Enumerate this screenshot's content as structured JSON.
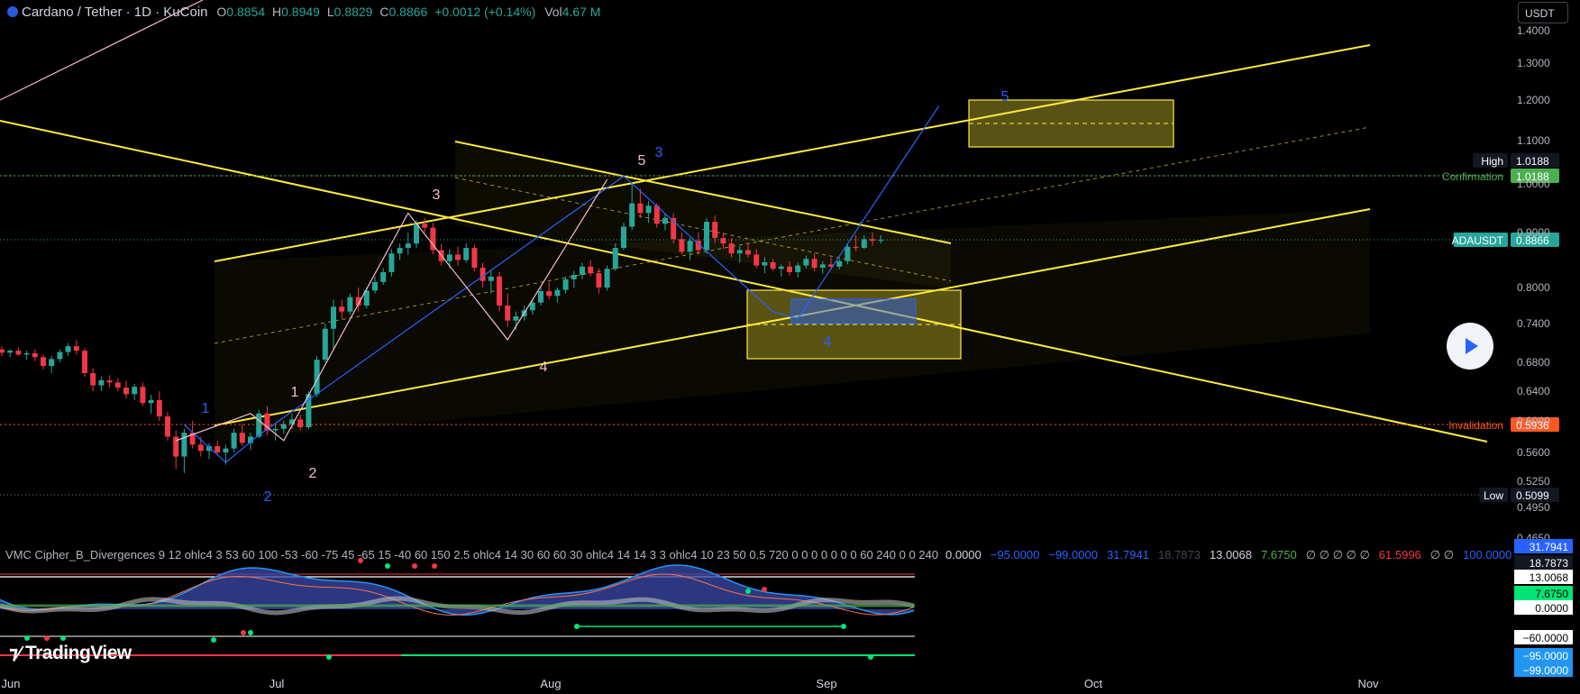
{
  "header": {
    "symbol": "Cardano / Tether · 1D · KuCoin",
    "o_label": "O",
    "o": "0.8854",
    "h_label": "H",
    "h": "0.8949",
    "l_label": "L",
    "l": "0.8829",
    "c_label": "C",
    "c": "0.8866",
    "change": "+0.0012 (+0.14%)",
    "vol_label": "Vol",
    "vol": "4.67 M"
  },
  "currency_button": "USDT",
  "brand": "TradingView",
  "indicator": {
    "title": "VMC Cipher_B_Divergences 9 12 ohlc4 3 53 60 100 -53 -60 -75 45 -65 15 -40 60 150 2.5 ohlc4 14 30 60 60 30 ohlc4 14 14 3 3 ohlc4 10 23 50 0.5 720 0 0 0 0 0 0 0 60 240 0 0 240",
    "values": [
      "0.0000",
      "−95.0000",
      "−99.0000",
      "31.7941",
      "18.7873",
      "13.0068",
      "7.6750",
      "∅ ∅ ∅ ∅ ∅",
      "61.5996",
      "∅ ∅",
      "100.0000"
    ],
    "value_colors": [
      "#d1d4dc",
      "#2962ff",
      "#2962ff",
      "#2962ff",
      "#434651",
      "#d1d4dc",
      "#4caf50",
      "#b2b5be",
      "#f23645",
      "#b2b5be",
      "#2962ff"
    ],
    "axis_labels": [
      {
        "text": "31.7941",
        "bg": "#2962ff",
        "fg": "#ffffff"
      },
      {
        "text": "18.7873",
        "bg": "#131722",
        "fg": "#ffffff"
      },
      {
        "text": "13.0068",
        "bg": "#ffffff",
        "fg": "#000000"
      },
      {
        "text": "7.6750",
        "bg": "#00e676",
        "fg": "#000000"
      },
      {
        "text": "0.0000",
        "bg": "#ffffff",
        "fg": "#000000"
      },
      {
        "text": "−60.0000",
        "bg": "#ffffff",
        "fg": "#000000"
      },
      {
        "text": "−95.0000",
        "bg": "#2196f3",
        "fg": "#ffffff"
      },
      {
        "text": "−99.0000",
        "bg": "#2196f3",
        "fg": "#ffffff"
      }
    ]
  },
  "chart_data": {
    "type": "candlestick",
    "symbol": "ADAUSDT",
    "timeframe": "1D",
    "y_axis_ticks": [
      "1.4000",
      "1.3000",
      "1.2000",
      "1.1000",
      "1.0000",
      "0.9000",
      "0.8000",
      "0.7400",
      "0.6800",
      "0.6400",
      "0.6000",
      "0.5600",
      "0.5250",
      "0.4950",
      "0.4650"
    ],
    "x_axis_ticks": [
      "Jun",
      "Jul",
      "Aug",
      "Sep",
      "Oct",
      "Nov"
    ],
    "price_labels": [
      {
        "name": "High",
        "value": "1.0188"
      },
      {
        "name": "Confirmation",
        "value": "1.0188"
      },
      {
        "name": "ADAUSDT",
        "value": "0.8866"
      },
      {
        "name": "Invalidation",
        "value": "0.5936"
      },
      {
        "name": "Low",
        "value": "0.5099"
      }
    ],
    "wave_labels_pink": [
      "1",
      "2",
      "3",
      "4",
      "5"
    ],
    "wave_labels_blue": [
      "1",
      "2",
      "3",
      "4",
      "5"
    ],
    "colors": {
      "up": "#26a69a",
      "down": "#f23645",
      "channel": "#ffeb3b",
      "wave_blue": "#2962ff",
      "wave_pink": "#f8bbd0",
      "invalidation": "#ff5722",
      "confirmation": "#4caf50"
    },
    "candles": [
      [
        0.7,
        0.705,
        0.69,
        0.695
      ],
      [
        0.695,
        0.7,
        0.688,
        0.698
      ],
      [
        0.698,
        0.703,
        0.69,
        0.692
      ],
      [
        0.692,
        0.698,
        0.684,
        0.694
      ],
      [
        0.694,
        0.7,
        0.682,
        0.688
      ],
      [
        0.688,
        0.692,
        0.67,
        0.675
      ],
      [
        0.675,
        0.69,
        0.665,
        0.685
      ],
      [
        0.685,
        0.7,
        0.68,
        0.696
      ],
      [
        0.696,
        0.71,
        0.69,
        0.705
      ],
      [
        0.705,
        0.715,
        0.692,
        0.698
      ],
      [
        0.698,
        0.702,
        0.66,
        0.665
      ],
      [
        0.665,
        0.672,
        0.64,
        0.648
      ],
      [
        0.648,
        0.66,
        0.64,
        0.655
      ],
      [
        0.655,
        0.662,
        0.645,
        0.652
      ],
      [
        0.652,
        0.658,
        0.64,
        0.645
      ],
      [
        0.645,
        0.655,
        0.63,
        0.636
      ],
      [
        0.636,
        0.65,
        0.628,
        0.646
      ],
      [
        0.646,
        0.652,
        0.62,
        0.624
      ],
      [
        0.624,
        0.635,
        0.61,
        0.628
      ],
      [
        0.628,
        0.64,
        0.6,
        0.606
      ],
      [
        0.606,
        0.612,
        0.575,
        0.58
      ],
      [
        0.58,
        0.588,
        0.54,
        0.555
      ],
      [
        0.555,
        0.59,
        0.535,
        0.585
      ],
      [
        0.585,
        0.6,
        0.565,
        0.57
      ],
      [
        0.57,
        0.58,
        0.555,
        0.562
      ],
      [
        0.562,
        0.572,
        0.552,
        0.568
      ],
      [
        0.568,
        0.575,
        0.558,
        0.56
      ],
      [
        0.56,
        0.57,
        0.545,
        0.565
      ],
      [
        0.565,
        0.59,
        0.56,
        0.585
      ],
      [
        0.585,
        0.596,
        0.568,
        0.572
      ],
      [
        0.572,
        0.585,
        0.563,
        0.58
      ],
      [
        0.58,
        0.615,
        0.578,
        0.61
      ],
      [
        0.61,
        0.62,
        0.582,
        0.588
      ],
      [
        0.588,
        0.595,
        0.575,
        0.59
      ],
      [
        0.59,
        0.6,
        0.584,
        0.596
      ],
      [
        0.596,
        0.61,
        0.59,
        0.602
      ],
      [
        0.602,
        0.608,
        0.588,
        0.592
      ],
      [
        0.592,
        0.64,
        0.59,
        0.636
      ],
      [
        0.636,
        0.69,
        0.632,
        0.684
      ],
      [
        0.684,
        0.74,
        0.68,
        0.732
      ],
      [
        0.732,
        0.78,
        0.7,
        0.768
      ],
      [
        0.768,
        0.78,
        0.748,
        0.76
      ],
      [
        0.76,
        0.79,
        0.755,
        0.784
      ],
      [
        0.784,
        0.8,
        0.76,
        0.77
      ],
      [
        0.77,
        0.8,
        0.765,
        0.795
      ],
      [
        0.795,
        0.82,
        0.79,
        0.81
      ],
      [
        0.81,
        0.835,
        0.805,
        0.828
      ],
      [
        0.828,
        0.87,
        0.82,
        0.862
      ],
      [
        0.862,
        0.88,
        0.85,
        0.872
      ],
      [
        0.872,
        0.9,
        0.86,
        0.88
      ],
      [
        0.88,
        0.925,
        0.872,
        0.918
      ],
      [
        0.918,
        0.93,
        0.9,
        0.91
      ],
      [
        0.91,
        0.92,
        0.86,
        0.868
      ],
      [
        0.868,
        0.88,
        0.84,
        0.848
      ],
      [
        0.848,
        0.87,
        0.835,
        0.86
      ],
      [
        0.86,
        0.875,
        0.84,
        0.85
      ],
      [
        0.85,
        0.88,
        0.845,
        0.872
      ],
      [
        0.872,
        0.878,
        0.83,
        0.836
      ],
      [
        0.836,
        0.845,
        0.8,
        0.812
      ],
      [
        0.812,
        0.83,
        0.79,
        0.82
      ],
      [
        0.82,
        0.828,
        0.76,
        0.77
      ],
      [
        0.77,
        0.79,
        0.735,
        0.745
      ],
      [
        0.745,
        0.76,
        0.73,
        0.752
      ],
      [
        0.752,
        0.77,
        0.745,
        0.762
      ],
      [
        0.762,
        0.78,
        0.755,
        0.775
      ],
      [
        0.775,
        0.8,
        0.77,
        0.794
      ],
      [
        0.794,
        0.81,
        0.78,
        0.786
      ],
      [
        0.786,
        0.8,
        0.775,
        0.796
      ],
      [
        0.796,
        0.82,
        0.79,
        0.815
      ],
      [
        0.815,
        0.83,
        0.8,
        0.823
      ],
      [
        0.823,
        0.845,
        0.815,
        0.838
      ],
      [
        0.838,
        0.85,
        0.82,
        0.826
      ],
      [
        0.826,
        0.835,
        0.79,
        0.8
      ],
      [
        0.8,
        0.84,
        0.795,
        0.834
      ],
      [
        0.834,
        0.88,
        0.83,
        0.872
      ],
      [
        0.872,
        0.92,
        0.868,
        0.912
      ],
      [
        0.912,
        1.0,
        0.905,
        0.96
      ],
      [
        0.96,
        0.99,
        0.93,
        0.94
      ],
      [
        0.94,
        0.965,
        0.92,
        0.955
      ],
      [
        0.955,
        0.96,
        0.91,
        0.918
      ],
      [
        0.918,
        0.94,
        0.905,
        0.93
      ],
      [
        0.93,
        0.94,
        0.88,
        0.888
      ],
      [
        0.888,
        0.9,
        0.86,
        0.865
      ],
      [
        0.865,
        0.89,
        0.85,
        0.885
      ],
      [
        0.885,
        0.9,
        0.86,
        0.868
      ],
      [
        0.868,
        0.93,
        0.862,
        0.922
      ],
      [
        0.922,
        0.935,
        0.88,
        0.89
      ],
      [
        0.89,
        0.9,
        0.87,
        0.88
      ],
      [
        0.88,
        0.89,
        0.855,
        0.862
      ],
      [
        0.862,
        0.875,
        0.845,
        0.868
      ],
      [
        0.868,
        0.88,
        0.855,
        0.86
      ],
      [
        0.86,
        0.87,
        0.835,
        0.84
      ],
      [
        0.84,
        0.855,
        0.826,
        0.846
      ],
      [
        0.846,
        0.852,
        0.83,
        0.834
      ],
      [
        0.834,
        0.842,
        0.82,
        0.838
      ],
      [
        0.838,
        0.848,
        0.822,
        0.828
      ],
      [
        0.828,
        0.845,
        0.818,
        0.84
      ],
      [
        0.84,
        0.858,
        0.835,
        0.852
      ],
      [
        0.852,
        0.862,
        0.83,
        0.836
      ],
      [
        0.836,
        0.848,
        0.825,
        0.842
      ],
      [
        0.842,
        0.854,
        0.832,
        0.838
      ],
      [
        0.838,
        0.852,
        0.833,
        0.848
      ],
      [
        0.848,
        0.88,
        0.842,
        0.874
      ],
      [
        0.874,
        0.895,
        0.866,
        0.872
      ],
      [
        0.872,
        0.895,
        0.87,
        0.888
      ],
      [
        0.888,
        0.9,
        0.876,
        0.885
      ],
      [
        0.885,
        0.895,
        0.88,
        0.8866
      ]
    ],
    "wave_blue_points": [
      [
        22,
        0.595
      ],
      [
        27,
        0.548
      ],
      [
        31,
        0.582
      ],
      [
        75,
        1.018
      ],
      [
        93,
        0.76
      ],
      [
        96,
        0.748
      ],
      [
        113,
        1.185
      ]
    ],
    "wave_pink_points": [
      [
        21,
        0.575
      ],
      [
        30,
        0.61
      ],
      [
        34,
        0.575
      ],
      [
        49,
        0.94
      ],
      [
        61,
        0.715
      ],
      [
        73,
        1.01
      ]
    ]
  }
}
